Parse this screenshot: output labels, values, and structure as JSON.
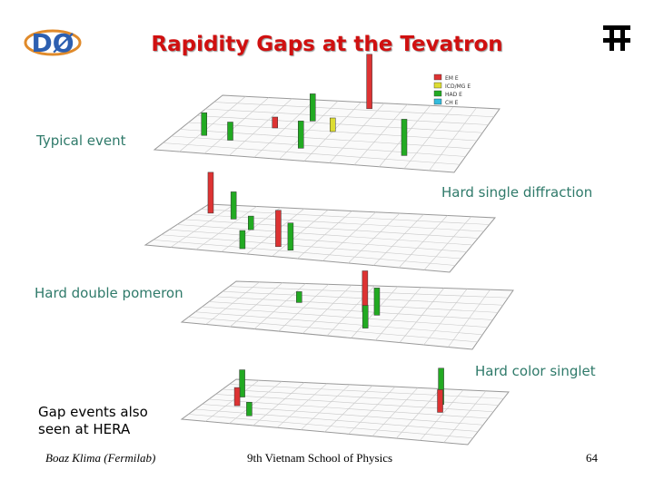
{
  "header": {
    "title": "Rapidity Gaps at the Tevatron",
    "logo_left": "DØ"
  },
  "panels": [
    {
      "label": "Typical event",
      "legend": [
        "EM E",
        "ICD/MG E",
        "HAD E",
        "CH E"
      ]
    },
    {
      "label": "Hard single diffraction"
    },
    {
      "label": "Hard double pomeron"
    },
    {
      "label": "Hard color singlet"
    }
  ],
  "note": [
    "Gap events also",
    "seen at HERA"
  ],
  "footer": {
    "author": "Boaz Klima (Fermilab)",
    "event": "9th Vietnam School of Physics",
    "page": "64"
  }
}
